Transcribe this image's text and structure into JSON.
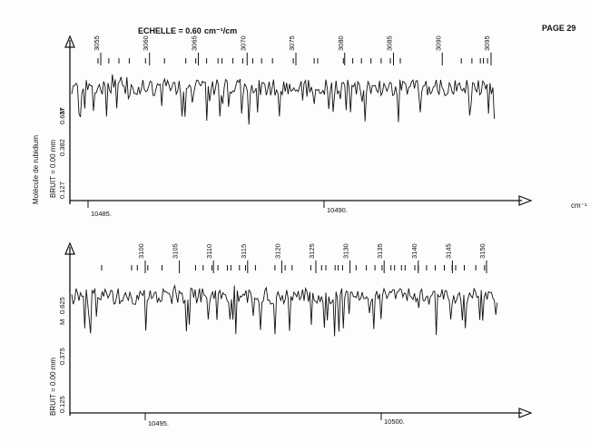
{
  "header": {
    "scale_label": "ECHELLE = 0.60",
    "scale_unit": "cm⁻¹/cm",
    "page": "PAGE 29"
  },
  "panels": [
    {
      "molecule": "Molécule de rubidium",
      "noise": "BRUIT = 0.00 mm",
      "y_ticks": [
        "0.127",
        "0.382",
        "0.637"
      ],
      "marker": "M",
      "x_unit": "cm⁻¹",
      "x_ticks": [
        "10485.",
        "10490."
      ],
      "assignments": [
        "3055",
        "3060",
        "3065",
        "3070",
        "3075",
        "3080",
        "3085",
        "3090",
        "3095"
      ]
    },
    {
      "noise": "BRUIT = 0.00 mm",
      "y_ticks": [
        "0.125",
        "0.375",
        "0.625"
      ],
      "marker": "M",
      "x_ticks": [
        "10495.",
        "10500."
      ],
      "assignments": [
        "3100",
        "3105",
        "3110",
        "3115",
        "3120",
        "3125",
        "3130",
        "3135",
        "3140",
        "3145",
        "3150"
      ]
    }
  ],
  "chart_data": [
    {
      "type": "line",
      "title": "ECHELLE = 0.60 cm⁻¹/cm",
      "xlabel": "cm⁻¹",
      "ylabel": "",
      "x_ticks": [
        10485,
        10490
      ],
      "y_ticks": [
        0.127,
        0.382,
        0.637
      ],
      "assignment_labels": [
        3055,
        3060,
        3065,
        3070,
        3075,
        3080,
        3085,
        3090,
        3095
      ],
      "series": [
        {
          "values": []
        }
      ]
    },
    {
      "type": "line",
      "xlabel": "",
      "ylabel": "",
      "x_ticks": [
        10495,
        10500
      ],
      "y_ticks": [
        0.125,
        0.375,
        0.625
      ],
      "assignment_labels": [
        3100,
        3105,
        3110,
        3115,
        3120,
        3125,
        3130,
        3135,
        3140,
        3145,
        3150
      ],
      "series": [
        {
          "values": []
        }
      ]
    }
  ]
}
